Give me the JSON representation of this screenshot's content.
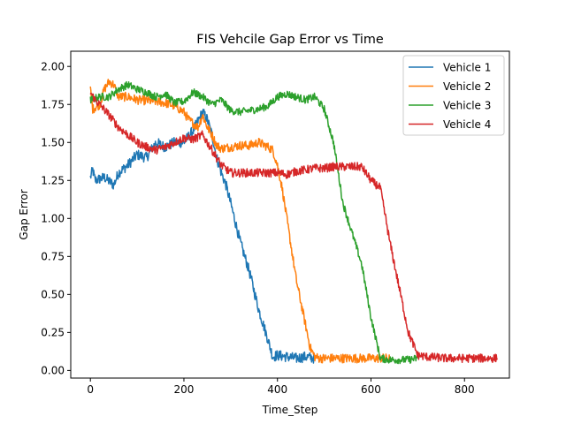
{
  "chart_data": {
    "type": "line",
    "title": "FIS Vehcile Gap Error vs Time",
    "xlabel": "Time_Step",
    "ylabel": "Gap Error",
    "xlim": [
      -42,
      896
    ],
    "ylim": [
      -0.05,
      2.1
    ],
    "xticks": [
      0,
      200,
      400,
      600,
      800
    ],
    "xtick_labels": [
      "0",
      "200",
      "400",
      "600",
      "800"
    ],
    "yticks": [
      0.0,
      0.25,
      0.5,
      0.75,
      1.0,
      1.25,
      1.5,
      1.75,
      2.0
    ],
    "ytick_labels": [
      "0.00",
      "0.25",
      "0.50",
      "0.75",
      "1.00",
      "1.25",
      "1.50",
      "1.75",
      "2.00"
    ],
    "grid": false,
    "legend_position": "top-right",
    "series": [
      {
        "name": "Vehicle 1",
        "color": "#1f77b4",
        "noise": 0.035,
        "x": [
          0,
          5,
          10,
          30,
          50,
          60,
          80,
          100,
          120,
          140,
          160,
          180,
          200,
          220,
          240,
          250,
          260,
          270,
          280,
          290,
          300,
          320,
          340,
          360,
          380,
          390,
          400,
          420,
          440,
          460,
          480
        ],
        "y": [
          1.27,
          1.32,
          1.25,
          1.27,
          1.22,
          1.3,
          1.35,
          1.42,
          1.4,
          1.5,
          1.47,
          1.5,
          1.5,
          1.58,
          1.7,
          1.65,
          1.55,
          1.4,
          1.3,
          1.22,
          1.1,
          0.85,
          0.65,
          0.4,
          0.2,
          0.09,
          0.1,
          0.09,
          0.08,
          0.09,
          0.08
        ]
      },
      {
        "name": "Vehicle 2",
        "color": "#ff7f0e",
        "noise": 0.03,
        "x": [
          0,
          5,
          20,
          30,
          40,
          50,
          60,
          80,
          100,
          140,
          160,
          180,
          200,
          210,
          230,
          240,
          250,
          260,
          270,
          280,
          300,
          320,
          340,
          360,
          380,
          390,
          400,
          410,
          420,
          440,
          460,
          470,
          480,
          490,
          500,
          550,
          600,
          640
        ],
        "y": [
          1.85,
          1.72,
          1.75,
          1.85,
          1.9,
          1.88,
          1.8,
          1.8,
          1.78,
          1.77,
          1.76,
          1.74,
          1.7,
          1.65,
          1.6,
          1.68,
          1.6,
          1.55,
          1.48,
          1.46,
          1.47,
          1.48,
          1.48,
          1.5,
          1.47,
          1.45,
          1.35,
          1.2,
          1.0,
          0.6,
          0.3,
          0.15,
          0.09,
          0.08,
          0.08,
          0.08,
          0.08,
          0.08
        ]
      },
      {
        "name": "Vehicle 3",
        "color": "#2ca02c",
        "noise": 0.025,
        "x": [
          0,
          20,
          40,
          60,
          80,
          100,
          120,
          140,
          160,
          180,
          200,
          220,
          240,
          260,
          280,
          300,
          320,
          340,
          360,
          380,
          400,
          420,
          440,
          460,
          480,
          500,
          520,
          540,
          560,
          580,
          600,
          620,
          640,
          660,
          680,
          700
        ],
        "y": [
          1.78,
          1.8,
          1.8,
          1.85,
          1.88,
          1.85,
          1.83,
          1.8,
          1.82,
          1.76,
          1.77,
          1.83,
          1.8,
          1.75,
          1.78,
          1.71,
          1.7,
          1.71,
          1.72,
          1.74,
          1.8,
          1.82,
          1.8,
          1.78,
          1.8,
          1.72,
          1.5,
          1.1,
          0.9,
          0.7,
          0.35,
          0.08,
          0.07,
          0.07,
          0.07,
          0.08
        ]
      },
      {
        "name": "Vehicle 4",
        "color": "#d62728",
        "noise": 0.028,
        "x": [
          0,
          10,
          20,
          40,
          60,
          80,
          100,
          120,
          140,
          160,
          180,
          200,
          220,
          240,
          260,
          280,
          300,
          350,
          400,
          420,
          440,
          460,
          480,
          500,
          520,
          540,
          560,
          580,
          600,
          620,
          640,
          660,
          680,
          700,
          720,
          760,
          800,
          840,
          870
        ],
        "y": [
          1.83,
          1.78,
          1.75,
          1.68,
          1.6,
          1.55,
          1.5,
          1.47,
          1.45,
          1.47,
          1.5,
          1.53,
          1.52,
          1.55,
          1.45,
          1.35,
          1.3,
          1.3,
          1.3,
          1.29,
          1.31,
          1.32,
          1.33,
          1.33,
          1.34,
          1.34,
          1.34,
          1.34,
          1.25,
          1.2,
          0.85,
          0.55,
          0.25,
          0.1,
          0.09,
          0.08,
          0.08,
          0.08,
          0.08
        ]
      }
    ]
  }
}
